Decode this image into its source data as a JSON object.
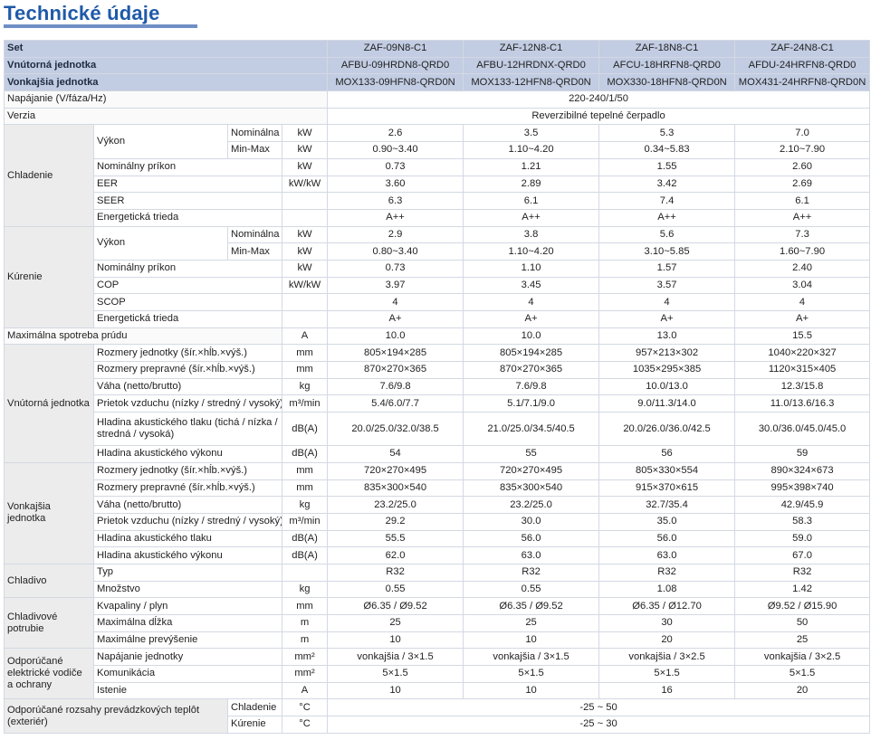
{
  "title": "Technické údaje",
  "header": [
    {
      "label": "Set",
      "values": [
        "ZAF-09N8-C1",
        "ZAF-12N8-C1",
        "ZAF-18N8-C1",
        "ZAF-24N8-C1"
      ]
    },
    {
      "label": "Vnútorná jednotka",
      "values": [
        "AFBU-09HRDN8-QRD0",
        "AFBU-12HRDNX-QRD0",
        "AFCU-18HRFN8-QRD0",
        "AFDU-24HRFN8-QRD0"
      ]
    },
    {
      "label": "Vonkajšia jednotka",
      "values": [
        "MOX133-09HFN8-QRD0N",
        "MOX133-12HFN8-QRD0N",
        "MOX330-18HFN8-QRD0N",
        "MOX431-24HRFN8-QRD0N"
      ]
    }
  ],
  "power_supply": {
    "label": "Napájanie (V/fáza/Hz)",
    "value": "220-240/1/50"
  },
  "version": {
    "label": "Verzia",
    "value": "Reverzibilné tepelné čerpadlo"
  },
  "cooling": {
    "group": "Chladenie",
    "rows": [
      {
        "param": "Výkon",
        "sub": "Nominálna",
        "unit": "kW",
        "values": [
          "2.6",
          "3.5",
          "5.3",
          "7.0"
        ]
      },
      {
        "sub": "Min-Max",
        "unit": "kW",
        "values": [
          "0.90~3.40",
          "1.10~4.20",
          "0.34~5.83",
          "2.10~7.90"
        ]
      },
      {
        "param": "Nominálny príkon",
        "unit": "kW",
        "values": [
          "0.73",
          "1.21",
          "1.55",
          "2.60"
        ]
      },
      {
        "param": "EER",
        "unit": "kW/kW",
        "values": [
          "3.60",
          "2.89",
          "3.42",
          "2.69"
        ]
      },
      {
        "param": "SEER",
        "unit": "",
        "values": [
          "6.3",
          "6.1",
          "7.4",
          "6.1"
        ]
      },
      {
        "param": "Energetická trieda",
        "unit": "",
        "values": [
          "A++",
          "A++",
          "A++",
          "A++"
        ]
      }
    ]
  },
  "heating": {
    "group": "Kúrenie",
    "rows": [
      {
        "param": "Výkon",
        "sub": "Nominálna",
        "unit": "kW",
        "values": [
          "2.9",
          "3.8",
          "5.6",
          "7.3"
        ]
      },
      {
        "sub": "Min-Max",
        "unit": "kW",
        "values": [
          "0.80~3.40",
          "1.10~4.20",
          "3.10~5.85",
          "1.60~7.90"
        ]
      },
      {
        "param": "Nominálny príkon",
        "unit": "kW",
        "values": [
          "0.73",
          "1.10",
          "1.57",
          "2.40"
        ]
      },
      {
        "param": "COP",
        "unit": "kW/kW",
        "values": [
          "3.97",
          "3.45",
          "3.57",
          "3.04"
        ]
      },
      {
        "param": "SCOP",
        "unit": "",
        "values": [
          "4",
          "4",
          "4",
          "4"
        ]
      },
      {
        "param": "Energetická trieda",
        "unit": "",
        "values": [
          "A+",
          "A+",
          "A+",
          "A+"
        ]
      }
    ]
  },
  "max_current": {
    "label": "Maximálna spotreba prúdu",
    "unit": "A",
    "values": [
      "10.0",
      "10.0",
      "13.0",
      "15.5"
    ]
  },
  "indoor": {
    "group": "Vnútorná jednotka",
    "rows": [
      {
        "param": "Rozmery jednotky (šír.×hĺb.×výš.)",
        "unit": "mm",
        "values": [
          "805×194×285",
          "805×194×285",
          "957×213×302",
          "1040×220×327"
        ]
      },
      {
        "param": "Rozmery prepravné (šír.×hĺb.×výš.)",
        "unit": "mm",
        "values": [
          "870×270×365",
          "870×270×365",
          "1035×295×385",
          "1120×315×405"
        ]
      },
      {
        "param": "Váha (netto/brutto)",
        "unit": "kg",
        "values": [
          "7.6/9.8",
          "7.6/9.8",
          "10.0/13.0",
          "12.3/15.8"
        ]
      },
      {
        "param": "Prietok vzduchu (nízky / stredný / vysoký)",
        "unit": "m³/min",
        "values": [
          "5.4/6.0/7.7",
          "5.1/7.1/9.0",
          "9.0/11.3/14.0",
          "11.0/13.6/16.3"
        ]
      },
      {
        "param": "Hladina akustického tlaku (tichá / nízka / stredná / vysoká)",
        "unit": "dB(A)",
        "values": [
          "20.0/25.0/32.0/38.5",
          "21.0/25.0/34.5/40.5",
          "20.0/26.0/36.0/42.5",
          "30.0/36.0/45.0/45.0"
        ],
        "tall": true
      },
      {
        "param": "Hladina akustického výkonu",
        "unit": "dB(A)",
        "values": [
          "54",
          "55",
          "56",
          "59"
        ]
      }
    ]
  },
  "outdoor": {
    "group": "Vonkajšia jednotka",
    "rows": [
      {
        "param": "Rozmery jednotky (šír.×hĺb.×výš.)",
        "unit": "mm",
        "values": [
          "720×270×495",
          "720×270×495",
          "805×330×554",
          "890×324×673"
        ]
      },
      {
        "param": "Rozmery prepravné (šír.×hĺb.×výš.)",
        "unit": "mm",
        "values": [
          "835×300×540",
          "835×300×540",
          "915×370×615",
          "995×398×740"
        ]
      },
      {
        "param": "Váha (netto/brutto)",
        "unit": "kg",
        "values": [
          "23.2/25.0",
          "23.2/25.0",
          "32.7/35.4",
          "42.9/45.9"
        ]
      },
      {
        "param": "Prietok vzduchu (nízky / stredný / vysoký)",
        "unit": "m³/min",
        "values": [
          "29.2",
          "30.0",
          "35.0",
          "58.3"
        ]
      },
      {
        "param": "Hladina akustického tlaku",
        "unit": "dB(A)",
        "values": [
          "55.5",
          "56.0",
          "56.0",
          "59.0"
        ]
      },
      {
        "param": "Hladina akustického výkonu",
        "unit": "dB(A)",
        "values": [
          "62.0",
          "63.0",
          "63.0",
          "67.0"
        ]
      }
    ]
  },
  "refrigerant": {
    "group": "Chladivo",
    "rows": [
      {
        "param": "Typ",
        "unit": "",
        "values": [
          "R32",
          "R32",
          "R32",
          "R32"
        ]
      },
      {
        "param": "Množstvo",
        "unit": "kg",
        "values": [
          "0.55",
          "0.55",
          "1.08",
          "1.42"
        ]
      }
    ]
  },
  "piping": {
    "group": "Chladivové potrubie",
    "rows": [
      {
        "param": "Kvapaliny / plyn",
        "unit": "mm",
        "values": [
          "Ø6.35 / Ø9.52",
          "Ø6.35 / Ø9.52",
          "Ø6.35 / Ø12.70",
          "Ø9.52 / Ø15.90"
        ]
      },
      {
        "param": "Maximálna dĺžka",
        "unit": "m",
        "values": [
          "25",
          "25",
          "30",
          "50"
        ]
      },
      {
        "param": "Maximálne prevýšenie",
        "unit": "m",
        "values": [
          "10",
          "10",
          "20",
          "25"
        ]
      }
    ]
  },
  "wiring": {
    "group": "Odporúčané elektrické vodiče a ochrany",
    "rows": [
      {
        "param": "Napájanie jednotky",
        "unit": "mm²",
        "values": [
          "vonkajšia / 3×1.5",
          "vonkajšia / 3×1.5",
          "vonkajšia / 3×2.5",
          "vonkajšia / 3×2.5"
        ]
      },
      {
        "param": "Komunikácia",
        "unit": "mm²",
        "values": [
          "5×1.5",
          "5×1.5",
          "5×1.5",
          "5×1.5"
        ]
      },
      {
        "param": "Istenie",
        "unit": "A",
        "values": [
          "10",
          "10",
          "16",
          "20"
        ]
      }
    ]
  },
  "operating_range": {
    "group": "Odporúčané rozsahy prevádzkových teplôt (exteriér)",
    "rows": [
      {
        "mode": "Chladenie",
        "unit": "°C",
        "value": "-25 ~ 50"
      },
      {
        "mode": "Kúrenie",
        "unit": "°C",
        "value": "-25 ~ 30"
      }
    ]
  }
}
